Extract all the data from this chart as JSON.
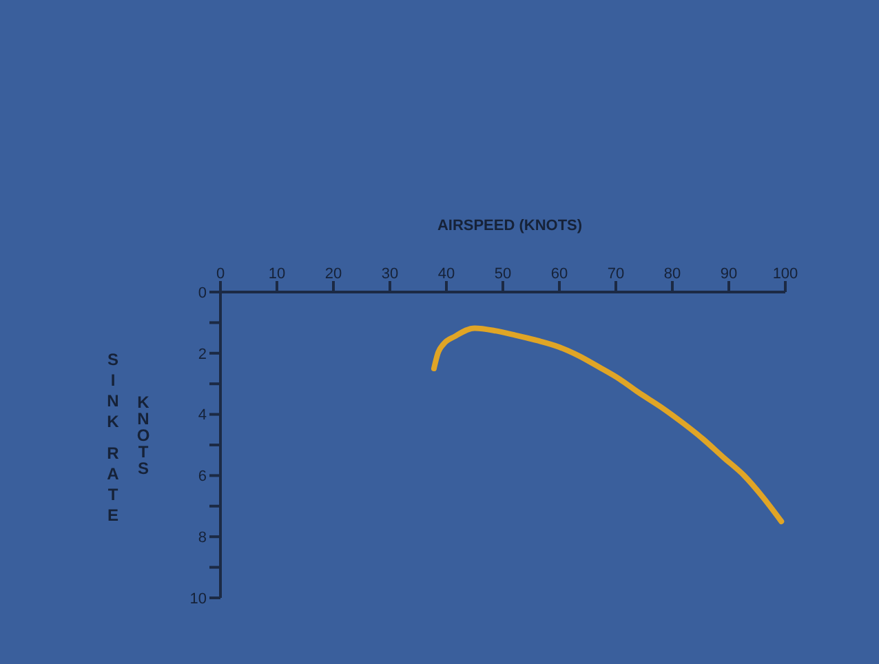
{
  "chart_data": {
    "type": "line",
    "xlabel": "AIRSPEED (KNOTS)",
    "ylabel": "SINK RATE",
    "annotations": [
      "KNOTS"
    ],
    "xlim": [
      0,
      100
    ],
    "xticks": [
      0,
      10,
      20,
      30,
      40,
      50,
      60,
      70,
      80,
      90,
      100
    ],
    "ylim": [
      10,
      0
    ],
    "yticks": [
      0,
      {
        "value": 1,
        "label": null
      },
      2,
      {
        "value": 3,
        "label": null
      },
      4,
      {
        "value": 5,
        "label": null
      },
      6,
      {
        "value": 7,
        "label": null
      },
      8,
      {
        "value": 9,
        "label": null
      },
      10
    ],
    "grid": false,
    "legend": false,
    "marker": "none",
    "line_style": "solid",
    "series": [
      {
        "color": "#e0a526",
        "x": [
          37.8,
          38.5,
          39.5,
          41.5,
          45,
          48.8,
          52,
          56,
          60,
          63.4,
          67,
          70.7,
          74,
          78,
          82,
          85.4,
          89,
          92.7,
          96,
          99.3
        ],
        "values": [
          2.5,
          2.0,
          1.7,
          1.45,
          1.18,
          1.27,
          1.4,
          1.58,
          1.8,
          2.08,
          2.45,
          2.85,
          3.28,
          3.76,
          4.3,
          4.8,
          5.4,
          6.0,
          6.7,
          7.5
        ]
      }
    ]
  }
}
